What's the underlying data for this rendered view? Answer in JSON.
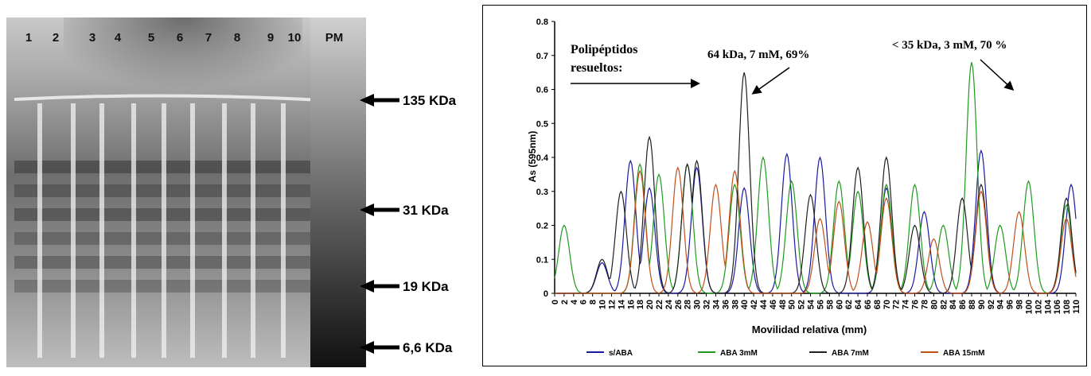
{
  "gel": {
    "lane_labels": [
      "1",
      "2",
      "3",
      "4",
      "5",
      "6",
      "7",
      "8",
      "9",
      "10",
      "PM"
    ],
    "markers": [
      {
        "label": "135 KDa"
      },
      {
        "label": "31 KDa"
      },
      {
        "label": "19 KDa"
      },
      {
        "label": "6,6 KDa"
      }
    ]
  },
  "chart_data": {
    "type": "line",
    "title": "",
    "xlabel": "Movilidad relativa (mm)",
    "ylabel": "As (595nm)",
    "xlim": [
      0,
      110
    ],
    "ylim": [
      0,
      0.8
    ],
    "x_ticks": [
      0,
      2,
      4,
      6,
      8,
      10,
      12,
      14,
      16,
      18,
      20,
      22,
      24,
      26,
      28,
      30,
      32,
      34,
      36,
      38,
      40,
      42,
      44,
      46,
      48,
      50,
      52,
      54,
      56,
      58,
      60,
      62,
      64,
      66,
      68,
      70,
      72,
      74,
      76,
      78,
      80,
      82,
      84,
      86,
      88,
      90,
      92,
      94,
      96,
      98,
      100,
      102,
      104,
      106,
      108,
      110
    ],
    "y_ticks": [
      0,
      0.1,
      0.2,
      0.3,
      0.4,
      0.5,
      0.6,
      0.7,
      0.8
    ],
    "legend_position": "bottom",
    "series": [
      {
        "name": "s/ABA",
        "color": "#1a1aa0",
        "peaks": [
          [
            10,
            0.09
          ],
          [
            16,
            0.39
          ],
          [
            20,
            0.31
          ],
          [
            30,
            0.37
          ],
          [
            40,
            0.31
          ],
          [
            49,
            0.41
          ],
          [
            56,
            0.4
          ],
          [
            70,
            0.31
          ],
          [
            78,
            0.24
          ],
          [
            90,
            0.42
          ],
          [
            109,
            0.32
          ]
        ]
      },
      {
        "name": "ABA 3mM",
        "color": "#1f9a1f",
        "peaks": [
          [
            2,
            0.2
          ],
          [
            18,
            0.38
          ],
          [
            22,
            0.35
          ],
          [
            28,
            0.38
          ],
          [
            38,
            0.32
          ],
          [
            44,
            0.4
          ],
          [
            50,
            0.33
          ],
          [
            60,
            0.33
          ],
          [
            64,
            0.3
          ],
          [
            70,
            0.32
          ],
          [
            76,
            0.32
          ],
          [
            82,
            0.2
          ],
          [
            88,
            0.68
          ],
          [
            94,
            0.2
          ],
          [
            100,
            0.33
          ],
          [
            108,
            0.26
          ]
        ]
      },
      {
        "name": "ABA 7mM",
        "color": "#202020",
        "peaks": [
          [
            10,
            0.1
          ],
          [
            14,
            0.3
          ],
          [
            20,
            0.46
          ],
          [
            28,
            0.38
          ],
          [
            30,
            0.39
          ],
          [
            40,
            0.65
          ],
          [
            54,
            0.29
          ],
          [
            64,
            0.37
          ],
          [
            70,
            0.4
          ],
          [
            76,
            0.2
          ],
          [
            86,
            0.28
          ],
          [
            90,
            0.32
          ],
          [
            108,
            0.28
          ]
        ]
      },
      {
        "name": "ABA 15mM",
        "color": "#c0501a",
        "peaks": [
          [
            18,
            0.36
          ],
          [
            26,
            0.37
          ],
          [
            34,
            0.32
          ],
          [
            38,
            0.36
          ],
          [
            56,
            0.22
          ],
          [
            60,
            0.27
          ],
          [
            66,
            0.21
          ],
          [
            70,
            0.28
          ],
          [
            80,
            0.16
          ],
          [
            90,
            0.3
          ],
          [
            98,
            0.24
          ],
          [
            108,
            0.22
          ]
        ]
      }
    ],
    "annotations": [
      {
        "text_lines": [
          "Polipéptidos",
          "resueltos:"
        ]
      },
      {
        "text": "64 kDa, 7 mM, 69%"
      },
      {
        "text": "< 35 kDa, 3 mM, 70 %"
      }
    ]
  }
}
